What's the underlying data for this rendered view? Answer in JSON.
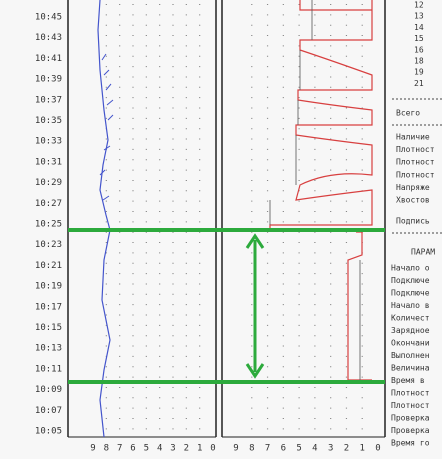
{
  "times": [
    "10:45",
    "10:43",
    "10:41",
    "10:39",
    "10:37",
    "10:35",
    "10:33",
    "10:31",
    "10:29",
    "10:27",
    "10:25",
    "10:23",
    "10:21",
    "10:19",
    "10:17",
    "10:15",
    "10:13",
    "10:11",
    "10:09",
    "10:07",
    "10:05"
  ],
  "panel_left_scale": [
    "9",
    "8",
    "7",
    "6",
    "5",
    "4",
    "3",
    "2",
    "1",
    "0"
  ],
  "panel_right_scale": [
    "9",
    "8",
    "7",
    "6",
    "5",
    "4",
    "3",
    "2",
    "1",
    "0"
  ],
  "side": {
    "numbers": [
      "12",
      "13",
      "14",
      "15",
      "16",
      "18",
      "19",
      "21"
    ],
    "summary_heading": "Всего",
    "summary_items": [
      "Наличие",
      "Плотност",
      "Плотност",
      "Плотност",
      "Напряже",
      "Хвостов"
    ],
    "signature": "Подпись",
    "params_heading": "ПАРАМ",
    "params_items": [
      "Начало о",
      "Подключе",
      "Подключе",
      "Начало в",
      "Количест",
      "Зарядное",
      "Окончани",
      "Выполнен",
      "Величина",
      "Время в",
      "Плотност",
      "Плотност",
      "Проверка",
      "Проверка",
      "Время го"
    ]
  }
}
